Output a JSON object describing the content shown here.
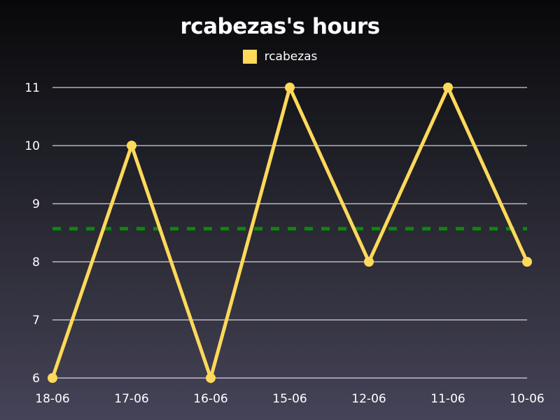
{
  "chart_data": {
    "type": "line",
    "title": "rcabezas's hours",
    "xlabel": "",
    "ylabel": "",
    "categories": [
      "18-06",
      "17-06",
      "16-06",
      "15-06",
      "12-06",
      "11-06",
      "10-06"
    ],
    "series": [
      {
        "name": "rcabezas",
        "values": [
          6,
          10,
          6,
          11,
          8,
          11,
          8
        ],
        "color": "#ffd95a"
      }
    ],
    "reference_line": {
      "value": 8.57,
      "color": "#0a8a0a",
      "style": "dashed"
    },
    "ylim": [
      6,
      11
    ],
    "yticks": [
      6,
      7,
      8,
      9,
      10,
      11
    ],
    "grid": true,
    "legend_position": "top-center"
  },
  "colors": {
    "grid": "#ffffff",
    "text": "#ffffff"
  }
}
